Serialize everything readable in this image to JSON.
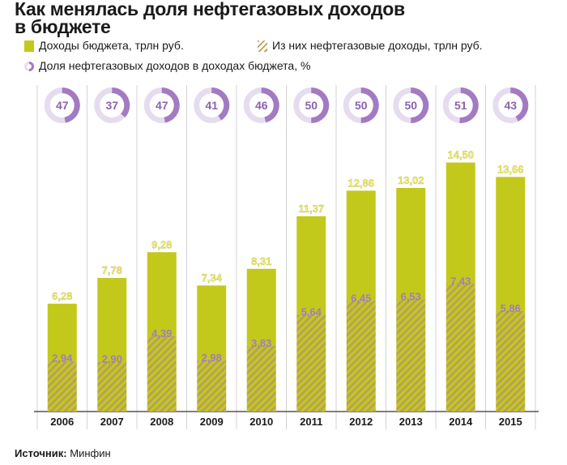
{
  "title": {
    "line1": "Как менялась доля нефтегазовых доходов",
    "line2": "в бюджете"
  },
  "legend": {
    "budget": "Доходы бюджета, трлн руб.",
    "oil_gas": "Из них нефтегазовые доходы, трлн руб.",
    "share": "Доля нефтегазовых доходов в доходах бюджета, %"
  },
  "source": {
    "label": "Источник:",
    "value": "Минфин"
  },
  "colors": {
    "budget": "#c3c91a",
    "hatch": "#b7a25a",
    "purple": "#a27bc3",
    "purple_light": "#e6dcef",
    "value_text": "#f2ee64"
  },
  "chart_data": {
    "type": "bar",
    "categories": [
      "2006",
      "2007",
      "2008",
      "2009",
      "2010",
      "2011",
      "2012",
      "2013",
      "2014",
      "2015"
    ],
    "series": [
      {
        "name": "Доходы бюджета, трлн руб.",
        "values": [
          6.28,
          7.78,
          9.28,
          7.34,
          8.31,
          11.37,
          12.86,
          13.02,
          14.5,
          13.66
        ],
        "labels": [
          "6,28",
          "7,78",
          "9,28",
          "7,34",
          "8,31",
          "11,37",
          "12,86",
          "13,02",
          "14,50",
          "13,66"
        ]
      },
      {
        "name": "Из них нефтегазовые доходы, трлн руб.",
        "values": [
          2.94,
          2.9,
          4.39,
          2.98,
          3.83,
          5.64,
          6.45,
          6.53,
          7.43,
          5.86
        ],
        "labels": [
          "2,94",
          "2,90",
          "4,39",
          "2,98",
          "3,83",
          "5,64",
          "6,45",
          "6,53",
          "7,43",
          "5,86"
        ]
      },
      {
        "name": "Доля нефтегазовых доходов в доходах бюджета, %",
        "values": [
          47,
          37,
          47,
          41,
          46,
          50,
          50,
          50,
          51,
          43
        ],
        "labels": [
          "47",
          "37",
          "47",
          "41",
          "46",
          "50",
          "50",
          "50",
          "51",
          "43"
        ]
      }
    ],
    "ylim": [
      0,
      15
    ]
  }
}
